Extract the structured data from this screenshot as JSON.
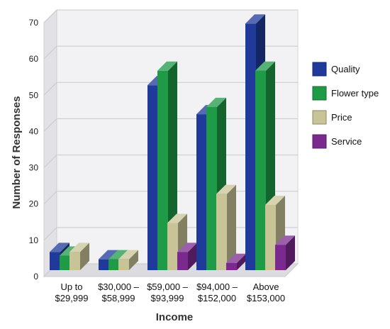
{
  "chart_data": {
    "type": "bar",
    "xlabel": "Income",
    "ylabel": "Number of Responses",
    "ylim": [
      0,
      70
    ],
    "yticks": [
      0,
      10,
      20,
      30,
      40,
      50,
      60,
      70
    ],
    "categories": [
      [
        "Up to",
        "$29,999"
      ],
      [
        "$30,000 –",
        "$58,999"
      ],
      [
        "$59,000 –",
        "$93,999"
      ],
      [
        "$94,000 –",
        "$152,000"
      ],
      [
        "Above",
        "$153,000"
      ]
    ],
    "series": [
      {
        "name": "Quality",
        "color": "#1f3a9a",
        "values": [
          5,
          3,
          51,
          43,
          68
        ]
      },
      {
        "name": "Flower type",
        "color": "#1f9a47",
        "values": [
          4,
          3,
          55,
          45,
          55
        ]
      },
      {
        "name": "Price",
        "color": "#c9c497",
        "values": [
          5,
          3,
          13,
          21,
          18
        ]
      },
      {
        "name": "Service",
        "color": "#7a2a8f",
        "values": [
          0,
          0,
          5,
          2,
          7
        ]
      }
    ],
    "grid": true,
    "legend_position": "right"
  }
}
